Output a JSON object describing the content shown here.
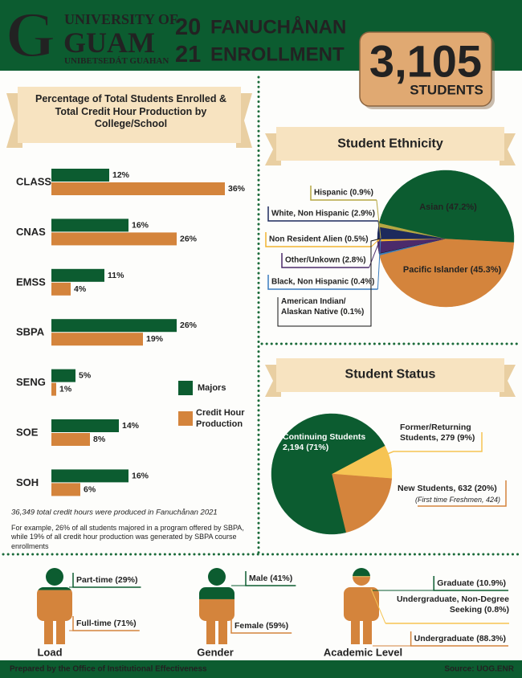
{
  "header": {
    "logo": "G",
    "university": "UNIVERSITY OF",
    "guam": "GUAM",
    "subtitle": "UNIBETSEDÁT GUAHAN",
    "year_top": "20",
    "year_bottom": "21",
    "title_top": "FANUCHÅNAN",
    "title_bottom": "ENROLLMENT",
    "total": "3,105",
    "total_unit": "STUDENTS"
  },
  "chart_data": [
    {
      "type": "hbar",
      "title": "Percentage of Total Students Enrolled & Total Credit Hour Production by College/School",
      "categories": [
        "CLASS",
        "CNAS",
        "EMSS",
        "SBPA",
        "SENG",
        "SOE",
        "SOH"
      ],
      "xlim": [
        0,
        40
      ],
      "series": [
        {
          "name": "Majors",
          "color": "#0c5c30",
          "values": [
            12,
            16,
            11,
            26,
            5,
            14,
            16
          ],
          "value_labels": [
            "12%",
            "16%",
            "11%",
            "26%",
            "5%",
            "14%",
            "16%"
          ]
        },
        {
          "name": "Credit Hour Production",
          "color": "#d4843c",
          "values": [
            36,
            26,
            4,
            19,
            1,
            8,
            6
          ],
          "value_labels": [
            "36%",
            "26%",
            "4%",
            "19%",
            "1%",
            "8%",
            "6%"
          ]
        }
      ],
      "notes": [
        "36,349 total credit hours were produced in Fanuchånan 2021",
        "For example, 26% of all students majored in a program offered by SBPA, while 19% of all credit hour production was generated by SBPA course enrollments"
      ]
    },
    {
      "type": "pie",
      "title": "Student Ethnicity",
      "values": [
        45.3,
        0.4,
        0.1,
        2.8,
        0.5,
        2.9,
        0.9,
        47.2
      ],
      "value_labels": [
        "Pacific Islander (45.3%)",
        "Black, Non Hispanic (0.4%)",
        "American Indian/ Alaskan Native (0.1%)",
        "Other/Unkown (2.8%)",
        "Non Resident Alien (0.5%)",
        "White, Non Hispanic (2.9%)",
        "Hispanic (0.9%)",
        "Asian (47.2%)"
      ],
      "colors": [
        "#d4843c",
        "#3a7dbf",
        "#111111",
        "#4b2a6b",
        "#f2b431",
        "#1d2a5c",
        "#b5a642",
        "#0c5c30"
      ]
    },
    {
      "type": "pie",
      "title": "Student Status",
      "values": [
        9,
        20,
        71
      ],
      "value_labels": [
        "Former/Returning Students, 279 (9%)",
        "New Students, 632 (20%)",
        "Continuing Students 2,194 (71%)"
      ],
      "annotation": "(First time Freshmen, 424)",
      "colors": [
        "#f6c453",
        "#d4843c",
        "#0c5c30"
      ]
    },
    {
      "type": "person",
      "title": "Load",
      "values": [
        29,
        71
      ],
      "value_labels": [
        "Part-time (29%)",
        "Full-time (71%)"
      ],
      "colors": [
        "#0c5c30",
        "#d4843c"
      ]
    },
    {
      "type": "person",
      "title": "Gender",
      "values": [
        41,
        59
      ],
      "value_labels": [
        "Male (41%)",
        "Female (59%)"
      ],
      "colors": [
        "#0c5c30",
        "#d4843c"
      ]
    },
    {
      "type": "person",
      "title": "Academic Level",
      "values": [
        10.9,
        0.8,
        88.3
      ],
      "value_labels": [
        "Graduate (10.9%)",
        "Undergraduate, Non-Degree Seeking (0.8%)",
        "Undergraduate (88.3%)"
      ],
      "colors": [
        "#0c5c30",
        "#f6c453",
        "#d4843c"
      ]
    }
  ],
  "footer": {
    "left": "Prepared by the Office of Institutional Effectiveness",
    "right": "Source: UOG.ENR"
  }
}
